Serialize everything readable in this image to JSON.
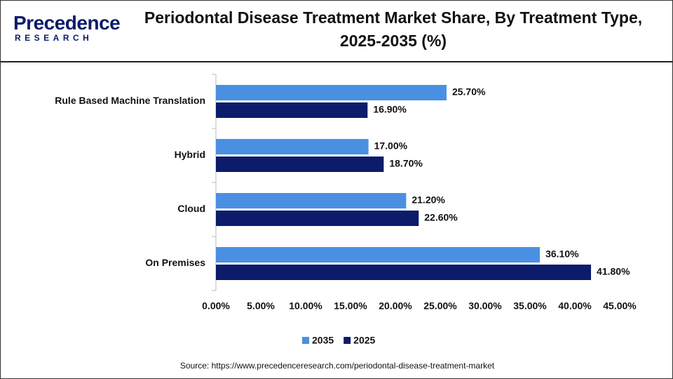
{
  "logo": {
    "name": "Precedence",
    "tagline": "RESEARCH"
  },
  "chart_data": {
    "type": "hbar",
    "title": "Periodontal Disease Treatment Market Share, By Treatment Type, 2025-2035 (%)",
    "categories": [
      "Rule Based Machine Translation",
      "Hybrid",
      "Cloud",
      "On Premises"
    ],
    "series": [
      {
        "name": "2035",
        "color": "#4a90e2",
        "values": [
          25.7,
          17.0,
          21.2,
          36.1
        ],
        "value_labels": [
          "25.70%",
          "17.00%",
          "21.20%",
          "36.10%"
        ]
      },
      {
        "name": "2025",
        "color": "#0c1c6b",
        "values": [
          16.9,
          18.7,
          22.6,
          41.8
        ],
        "value_labels": [
          "16.90%",
          "18.70%",
          "22.60%",
          "41.80%"
        ]
      }
    ],
    "xlim": [
      0,
      45
    ],
    "xticks": [
      {
        "value": 0,
        "label": "0.00%"
      },
      {
        "value": 5,
        "label": "5.00%"
      },
      {
        "value": 10,
        "label": "10.00%"
      },
      {
        "value": 15,
        "label": "15.00%"
      },
      {
        "value": 20,
        "label": "20.00%"
      },
      {
        "value": 25,
        "label": "25.00%"
      },
      {
        "value": 30,
        "label": "30.00%"
      },
      {
        "value": 35,
        "label": "35.00%"
      },
      {
        "value": 40,
        "label": "40.00%"
      },
      {
        "value": 45,
        "label": "45.00%"
      }
    ],
    "grid": false,
    "legend": "bottom",
    "source": "Source: https://www.precedenceresearch.com/periodontal-disease-treatment-market"
  }
}
